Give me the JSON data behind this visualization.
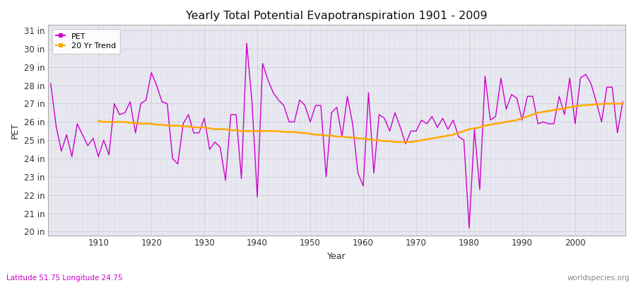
{
  "title": "Yearly Total Potential Evapotranspiration 1901 - 2009",
  "xlabel": "Year",
  "ylabel": "PET",
  "lat_lon_label": "Latitude 51.75 Longitude 24.75",
  "watermark": "worldspecies.org",
  "pet_color": "#cc00cc",
  "trend_color": "#ffaa00",
  "fig_bg_color": "#ffffff",
  "plot_bg_color": "#e8e8f0",
  "yticks": [
    20,
    21,
    22,
    23,
    24,
    25,
    26,
    27,
    28,
    29,
    30,
    31
  ],
  "ytick_labels": [
    "20 in",
    "21 in",
    "22 in",
    "23 in",
    "24 in",
    "25 in",
    "26 in",
    "27 in",
    "28 in",
    "29 in",
    "30 in",
    "31 in"
  ],
  "xticks": [
    1910,
    1920,
    1930,
    1940,
    1950,
    1960,
    1970,
    1980,
    1990,
    2000
  ],
  "xlim_left": 1900.5,
  "xlim_right": 2009.5,
  "ylim_bottom": 19.8,
  "ylim_top": 31.3,
  "years": [
    1901,
    1902,
    1903,
    1904,
    1905,
    1906,
    1907,
    1908,
    1909,
    1910,
    1911,
    1912,
    1913,
    1914,
    1915,
    1916,
    1917,
    1918,
    1919,
    1920,
    1921,
    1922,
    1923,
    1924,
    1925,
    1926,
    1927,
    1928,
    1929,
    1930,
    1931,
    1932,
    1933,
    1934,
    1935,
    1936,
    1937,
    1938,
    1939,
    1940,
    1941,
    1942,
    1943,
    1944,
    1945,
    1946,
    1947,
    1948,
    1949,
    1950,
    1951,
    1952,
    1953,
    1954,
    1955,
    1956,
    1957,
    1958,
    1959,
    1960,
    1961,
    1962,
    1963,
    1964,
    1965,
    1966,
    1967,
    1968,
    1969,
    1970,
    1971,
    1972,
    1973,
    1974,
    1975,
    1976,
    1977,
    1978,
    1979,
    1980,
    1981,
    1982,
    1983,
    1984,
    1985,
    1986,
    1987,
    1988,
    1989,
    1990,
    1991,
    1992,
    1993,
    1994,
    1995,
    1996,
    1997,
    1998,
    1999,
    2000,
    2001,
    2002,
    2003,
    2004,
    2005,
    2006,
    2007,
    2008,
    2009
  ],
  "pet_values": [
    28.1,
    25.8,
    24.4,
    25.3,
    24.1,
    25.9,
    25.3,
    24.7,
    25.1,
    24.1,
    25.0,
    24.2,
    27.0,
    26.4,
    26.5,
    27.1,
    25.4,
    27.0,
    27.2,
    28.7,
    28.0,
    27.1,
    27.0,
    24.0,
    23.7,
    25.9,
    26.4,
    25.4,
    25.4,
    26.2,
    24.5,
    24.9,
    24.6,
    22.8,
    26.4,
    26.4,
    22.9,
    30.3,
    27.1,
    21.9,
    29.2,
    28.3,
    27.6,
    27.2,
    26.9,
    26.0,
    26.0,
    27.2,
    26.9,
    26.0,
    26.9,
    26.9,
    23.0,
    26.5,
    26.8,
    25.2,
    27.4,
    25.9,
    23.2,
    22.5,
    27.6,
    23.2,
    26.4,
    26.2,
    25.5,
    26.5,
    25.7,
    24.8,
    25.5,
    25.5,
    26.1,
    25.9,
    26.3,
    25.7,
    26.2,
    25.6,
    26.1,
    25.2,
    25.0,
    20.2,
    25.6,
    22.3,
    28.5,
    26.1,
    26.3,
    28.4,
    26.7,
    27.5,
    27.3,
    26.1,
    27.4,
    27.4,
    25.9,
    26.0,
    25.9,
    25.9,
    27.4,
    26.4,
    28.4,
    25.9,
    28.4,
    28.6,
    28.1,
    27.1,
    26.0,
    27.9,
    27.9,
    25.4,
    27.1
  ],
  "trend_years": [
    1910,
    1911,
    1912,
    1913,
    1914,
    1915,
    1916,
    1917,
    1918,
    1919,
    1920,
    1921,
    1922,
    1923,
    1924,
    1925,
    1926,
    1927,
    1928,
    1929,
    1930,
    1931,
    1932,
    1933,
    1934,
    1935,
    1936,
    1937,
    1938,
    1939,
    1940,
    1941,
    1942,
    1943,
    1944,
    1945,
    1946,
    1947,
    1948,
    1949,
    1950,
    1951,
    1952,
    1953,
    1954,
    1955,
    1956,
    1957,
    1958,
    1959,
    1960,
    1961,
    1962,
    1963,
    1964,
    1965,
    1966,
    1967,
    1968,
    1969,
    1970,
    1971,
    1972,
    1973,
    1974,
    1975,
    1976,
    1977,
    1978,
    1979,
    1980,
    1981,
    1982,
    1983,
    1984,
    1985,
    1986,
    1987,
    1988,
    1989,
    1990,
    1991,
    1992,
    1993,
    1994,
    1995,
    1996,
    1997,
    1998,
    1999,
    2000,
    2001,
    2002,
    2003,
    2004,
    2005,
    2006,
    2007,
    2008,
    2009
  ],
  "trend_values": [
    26.05,
    26.0,
    26.0,
    26.0,
    26.0,
    26.0,
    25.95,
    25.95,
    25.9,
    25.9,
    25.9,
    25.85,
    25.85,
    25.8,
    25.8,
    25.8,
    25.75,
    25.75,
    25.7,
    25.7,
    25.7,
    25.65,
    25.6,
    25.6,
    25.6,
    25.55,
    25.55,
    25.5,
    25.5,
    25.5,
    25.5,
    25.5,
    25.5,
    25.5,
    25.5,
    25.45,
    25.45,
    25.45,
    25.4,
    25.4,
    25.35,
    25.3,
    25.3,
    25.25,
    25.25,
    25.2,
    25.2,
    25.15,
    25.15,
    25.1,
    25.1,
    25.05,
    25.0,
    25.0,
    24.95,
    24.95,
    24.9,
    24.9,
    24.9,
    24.9,
    24.95,
    25.0,
    25.05,
    25.1,
    25.15,
    25.2,
    25.25,
    25.3,
    25.4,
    25.5,
    25.6,
    25.65,
    25.7,
    25.8,
    25.85,
    25.9,
    25.95,
    26.0,
    26.05,
    26.1,
    26.2,
    26.3,
    26.4,
    26.5,
    26.55,
    26.6,
    26.65,
    26.7,
    26.75,
    26.8,
    26.85,
    26.9,
    26.92,
    26.94,
    26.96,
    26.98,
    27.0,
    27.0,
    27.0,
    27.0
  ]
}
